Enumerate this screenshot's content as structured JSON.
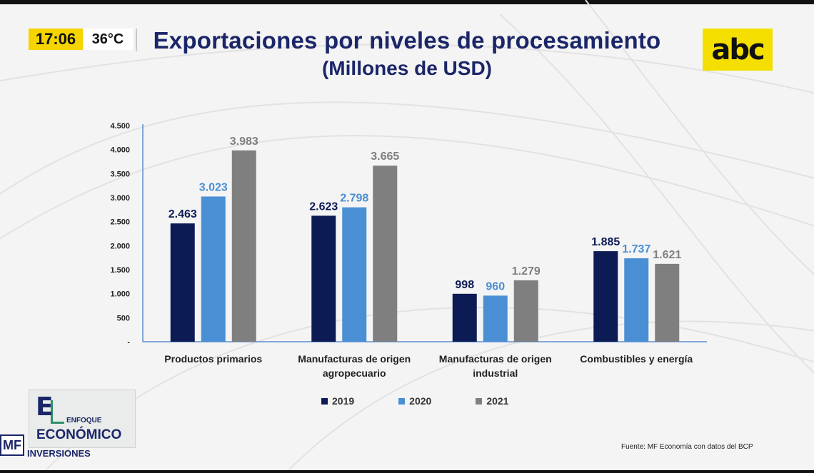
{
  "overlay": {
    "time": "17:06",
    "temperature": "36°C"
  },
  "header": {
    "title": "Exportaciones por niveles de procesamiento",
    "subtitle": "(Millones de USD)"
  },
  "logos": {
    "abc": "abc",
    "program_letter": "E",
    "program_small": "ENFOQUE",
    "program_big": "ECONÓMICO",
    "mf": "MF",
    "mf_subtitle": "INVERSIONES"
  },
  "source": "Fuente: MF Economía con datos del BCP",
  "chart_data": {
    "type": "bar",
    "title": "Exportaciones por niveles de procesamiento",
    "subtitle": "(Millones de USD)",
    "categories": [
      [
        "Productos primarios"
      ],
      [
        "Manufacturas de origen",
        "agropecuario"
      ],
      [
        "Manufacturas de origen",
        "industrial"
      ],
      [
        "Combustibles y energía"
      ]
    ],
    "series": [
      {
        "name": "2019",
        "color": "#0d1b55",
        "label_color": "#0d1b55",
        "values": [
          2463,
          2623,
          998,
          1885
        ],
        "labels": [
          "2.463",
          "2.623",
          "998",
          "1.885"
        ]
      },
      {
        "name": "2020",
        "color": "#4a8fd4",
        "label_color": "#4a8fd4",
        "values": [
          3023,
          2798,
          960,
          1737
        ],
        "labels": [
          "3.023",
          "2.798",
          "960",
          "1.737"
        ]
      },
      {
        "name": "2021",
        "color": "#7f7f7f",
        "label_color": "#7f7f7f",
        "values": [
          3983,
          3665,
          1279,
          1621
        ],
        "labels": [
          "3.983",
          "3.665",
          "1.279",
          "1.621"
        ]
      }
    ],
    "yticks": [
      {
        "value": 0,
        "label": "-"
      },
      {
        "value": 500,
        "label": "500"
      },
      {
        "value": 1000,
        "label": "1.000"
      },
      {
        "value": 1500,
        "label": "1.500"
      },
      {
        "value": 2000,
        "label": "2.000"
      },
      {
        "value": 2500,
        "label": "2.500"
      },
      {
        "value": 3000,
        "label": "3.000"
      },
      {
        "value": 3500,
        "label": "3.500"
      },
      {
        "value": 4000,
        "label": "4.000"
      },
      {
        "value": 4500,
        "label": "4.500"
      }
    ],
    "ylim": [
      0,
      4500
    ],
    "grid": false,
    "legend": "bottom-center"
  }
}
